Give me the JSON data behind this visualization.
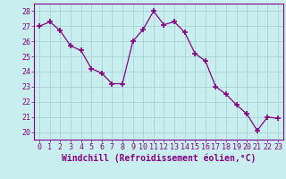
{
  "x": [
    0,
    1,
    2,
    3,
    4,
    5,
    6,
    7,
    8,
    9,
    10,
    11,
    12,
    13,
    14,
    15,
    16,
    17,
    18,
    19,
    20,
    21,
    22,
    23
  ],
  "y": [
    27.0,
    27.3,
    26.7,
    25.7,
    25.4,
    24.2,
    23.9,
    23.2,
    23.2,
    26.0,
    26.8,
    28.0,
    27.1,
    27.3,
    26.6,
    25.2,
    24.7,
    23.0,
    22.5,
    21.8,
    21.2,
    20.1,
    21.0,
    20.9
  ],
  "line_color": "#880088",
  "marker": "+",
  "marker_size": 4,
  "marker_lw": 1.2,
  "bg_color": "#c8eef0",
  "grid_color": "#a0cdd0",
  "xlabel": "Windchill (Refroidissement éolien,°C)",
  "ylabel": "",
  "xlim": [
    -0.5,
    23.5
  ],
  "ylim": [
    19.5,
    28.5
  ],
  "yticks": [
    20,
    21,
    22,
    23,
    24,
    25,
    26,
    27,
    28
  ],
  "xticks": [
    0,
    1,
    2,
    3,
    4,
    5,
    6,
    7,
    8,
    9,
    10,
    11,
    12,
    13,
    14,
    15,
    16,
    17,
    18,
    19,
    20,
    21,
    22,
    23
  ],
  "xlabel_color": "#880088",
  "tick_color": "#880088",
  "axis_color": "#880088",
  "xlabel_fontsize": 7,
  "tick_fontsize": 6,
  "spine_color": "#880088"
}
